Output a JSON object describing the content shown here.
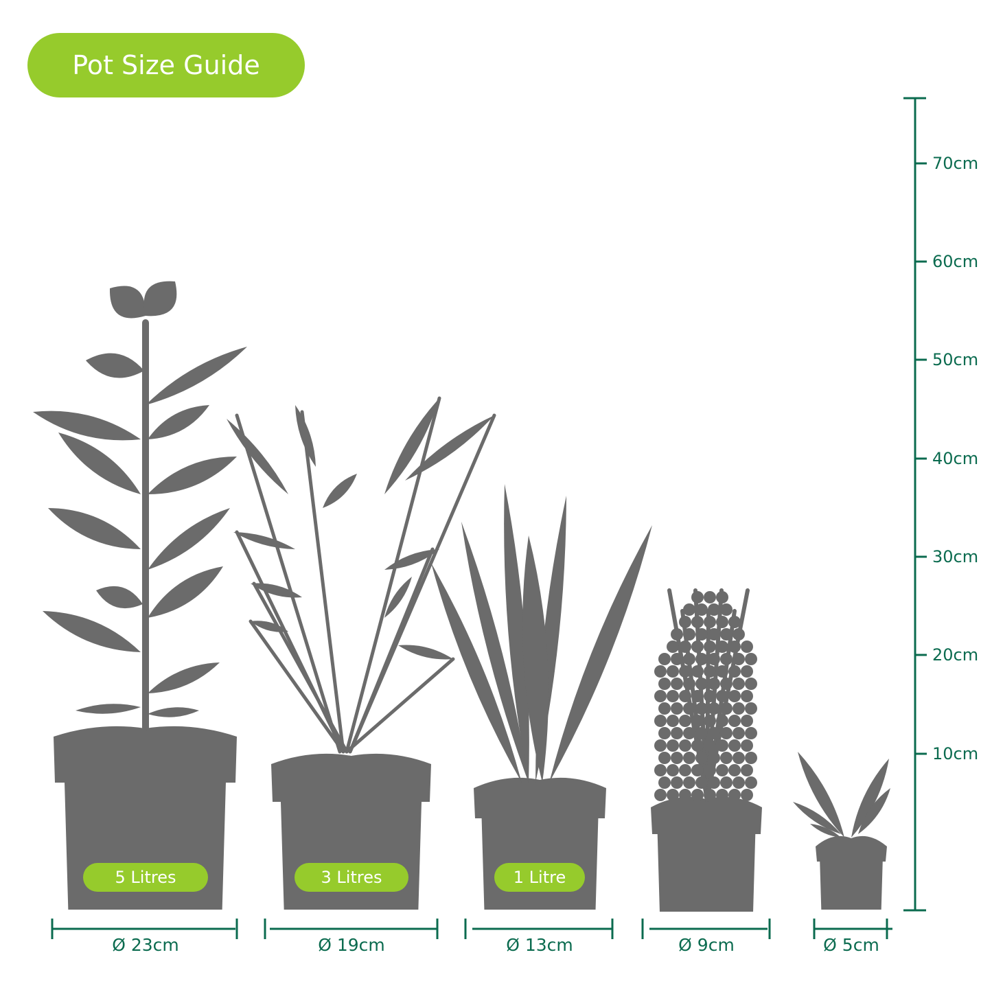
{
  "title": "Pot Size Guide",
  "colors": {
    "accent": "#96cb2c",
    "ruler": "#0b6b4f",
    "silhouette": "#6b6b6b"
  },
  "height_scale": {
    "unit": "cm",
    "ticks": [
      {
        "value": 70,
        "label": "70cm"
      },
      {
        "value": 60,
        "label": "60cm"
      },
      {
        "value": 50,
        "label": "50cm"
      },
      {
        "value": 40,
        "label": "40cm"
      },
      {
        "value": 30,
        "label": "30cm"
      },
      {
        "value": 20,
        "label": "20cm"
      },
      {
        "value": 10,
        "label": "10cm"
      }
    ]
  },
  "pots": [
    {
      "diameter_label": "Ø 23cm",
      "volume_label": "5 Litres"
    },
    {
      "diameter_label": "Ø 19cm",
      "volume_label": "3 Litres"
    },
    {
      "diameter_label": "Ø 13cm",
      "volume_label": "1 Litre"
    },
    {
      "diameter_label": "Ø 9cm"
    },
    {
      "diameter_label": "Ø 5cm"
    }
  ]
}
